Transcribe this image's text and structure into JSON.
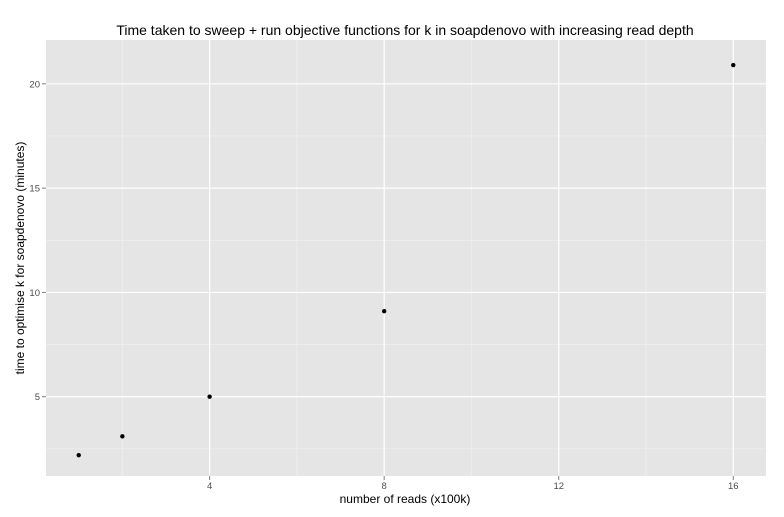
{
  "chart_data": {
    "type": "scatter",
    "title": "Time taken to sweep + run objective functions for k in soapdenovo with increasing read depth",
    "xlabel": "number of reads (x100k)",
    "ylabel": "time to optimise k for soapdenovo (minutes)",
    "xlim": [
      0.25,
      16.75
    ],
    "ylim": [
      1.2,
      22.1
    ],
    "x_ticks": [
      4,
      8,
      12,
      16
    ],
    "x_tick_labels": [
      "4",
      "8",
      "12",
      "16"
    ],
    "y_ticks": [
      5,
      10,
      15,
      20
    ],
    "y_tick_labels": [
      "5",
      "10",
      "15",
      "20"
    ],
    "grid": true,
    "series": [
      {
        "x": [
          1,
          2,
          4,
          8,
          16
        ],
        "y": [
          2.2,
          3.1,
          5.0,
          9.1,
          20.9
        ]
      }
    ],
    "colors": {
      "panel_background": "#e5e5e5",
      "grid_major": "#ffffff",
      "grid_minor": "#f2f2f2",
      "point": "#000000"
    }
  }
}
